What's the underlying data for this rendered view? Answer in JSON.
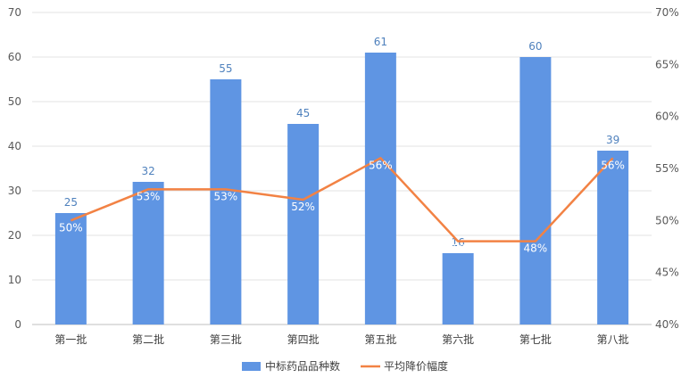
{
  "chart_data": {
    "type": "bar",
    "categories": [
      "第一批",
      "第二批",
      "第三批",
      "第四批",
      "第五批",
      "第六批",
      "第七批",
      "第八批"
    ],
    "series": [
      {
        "name": "中标药品品种数",
        "type": "bar",
        "axis": "left",
        "color": "#5f95e3",
        "values": [
          25,
          32,
          55,
          45,
          61,
          16,
          60,
          39
        ]
      },
      {
        "name": "平均降价幅度",
        "type": "line",
        "axis": "right",
        "color": "#f28244",
        "values": [
          50,
          53,
          53,
          52,
          56,
          48,
          48,
          56
        ],
        "labels": [
          "50%",
          "53%",
          "53%",
          "52%",
          "56%",
          "48%",
          "48%",
          "56%"
        ]
      }
    ],
    "left_axis": {
      "min": 0,
      "max": 70,
      "step": 10,
      "ticks": [
        "0",
        "10",
        "20",
        "30",
        "40",
        "50",
        "60",
        "70"
      ]
    },
    "right_axis": {
      "min": 40,
      "max": 70,
      "step": 5,
      "ticks": [
        "40%",
        "45%",
        "50%",
        "55%",
        "60%",
        "65%",
        "70%"
      ]
    },
    "grid": true,
    "legend_position": "bottom"
  }
}
